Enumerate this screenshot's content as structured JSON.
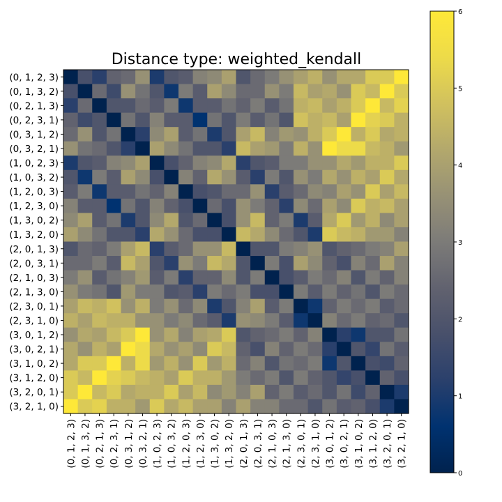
{
  "chart_data": {
    "type": "heatmap",
    "title": "Distance type: weighted_kendall",
    "colormap": "cividis",
    "vmin": 0,
    "vmax": 6,
    "colorbar_ticks": [
      "0",
      "1",
      "2",
      "3",
      "4",
      "5",
      "6"
    ],
    "labels": [
      "(0, 1, 2, 3)",
      "(0, 1, 3, 2)",
      "(0, 2, 1, 3)",
      "(0, 2, 3, 1)",
      "(0, 3, 1, 2)",
      "(0, 3, 2, 1)",
      "(1, 0, 2, 3)",
      "(1, 0, 3, 2)",
      "(1, 2, 0, 3)",
      "(1, 2, 3, 0)",
      "(1, 3, 0, 2)",
      "(1, 3, 2, 0)",
      "(2, 0, 1, 3)",
      "(2, 0, 3, 1)",
      "(2, 1, 0, 3)",
      "(2, 1, 3, 0)",
      "(2, 3, 0, 1)",
      "(2, 3, 1, 0)",
      "(3, 0, 1, 2)",
      "(3, 0, 2, 1)",
      "(3, 1, 0, 2)",
      "(3, 1, 2, 0)",
      "(3, 2, 0, 1)",
      "(3, 2, 1, 0)"
    ],
    "values": [
      [
        0.0,
        1.8,
        1.2,
        2.4,
        2.6,
        3.6,
        1.0,
        2.0,
        2.2,
        3.2,
        3.4,
        4.0,
        2.0,
        2.6,
        3.0,
        3.6,
        4.0,
        4.4,
        3.6,
        4.2,
        4.2,
        5.0,
        5.0,
        6.0
      ],
      [
        1.8,
        0.0,
        2.6,
        1.6,
        3.6,
        2.8,
        2.0,
        0.8,
        3.0,
        2.2,
        4.0,
        3.4,
        2.6,
        2.6,
        3.6,
        3.0,
        4.6,
        4.0,
        4.2,
        3.6,
        5.0,
        4.6,
        6.0,
        5.0
      ],
      [
        1.2,
        2.6,
        0.0,
        2.0,
        2.0,
        2.6,
        2.2,
        3.0,
        0.8,
        2.2,
        2.2,
        2.8,
        2.4,
        3.0,
        2.2,
        2.8,
        4.4,
        4.6,
        4.0,
        4.4,
        5.0,
        6.0,
        4.6,
        5.2
      ],
      [
        2.4,
        1.6,
        2.0,
        0.0,
        2.8,
        2.0,
        3.2,
        2.2,
        2.2,
        0.6,
        2.8,
        2.0,
        3.0,
        2.2,
        2.8,
        2.0,
        4.8,
        4.4,
        4.6,
        4.0,
        6.0,
        5.2,
        5.0,
        4.4
      ],
      [
        2.6,
        3.6,
        2.0,
        2.8,
        0.0,
        1.2,
        3.4,
        4.0,
        2.2,
        2.8,
        1.0,
        2.0,
        4.0,
        4.6,
        3.2,
        3.8,
        3.6,
        4.4,
        5.0,
        6.0,
        4.4,
        5.0,
        4.2,
        4.4
      ],
      [
        3.6,
        2.8,
        2.6,
        2.0,
        1.2,
        0.0,
        4.0,
        3.4,
        2.8,
        2.0,
        2.0,
        1.2,
        4.6,
        4.0,
        3.8,
        3.0,
        4.4,
        3.6,
        6.0,
        5.4,
        5.4,
        4.6,
        4.4,
        3.8
      ],
      [
        1.0,
        2.0,
        2.2,
        3.2,
        3.4,
        4.0,
        0.0,
        1.8,
        2.4,
        3.2,
        3.4,
        4.2,
        1.2,
        2.0,
        2.2,
        3.0,
        3.0,
        3.6,
        3.6,
        4.2,
        3.8,
        4.4,
        4.4,
        5.0
      ],
      [
        2.0,
        0.8,
        3.0,
        2.2,
        4.0,
        3.4,
        1.8,
        0.0,
        3.2,
        2.4,
        4.2,
        3.6,
        2.2,
        1.2,
        3.0,
        2.0,
        3.6,
        3.0,
        4.2,
        3.6,
        4.4,
        4.0,
        5.0,
        4.2
      ],
      [
        2.2,
        3.0,
        0.8,
        2.2,
        2.2,
        2.8,
        2.4,
        3.2,
        0.0,
        1.8,
        2.0,
        2.6,
        2.6,
        3.6,
        1.2,
        2.2,
        2.6,
        3.4,
        3.2,
        4.0,
        3.6,
        5.0,
        4.0,
        4.6
      ],
      [
        3.2,
        2.2,
        2.2,
        0.6,
        2.8,
        2.0,
        3.2,
        2.4,
        1.8,
        0.0,
        2.6,
        1.8,
        3.6,
        3.0,
        2.4,
        1.2,
        3.4,
        2.6,
        4.0,
        3.4,
        5.0,
        4.4,
        4.6,
        4.0
      ],
      [
        3.4,
        4.0,
        2.2,
        2.8,
        1.0,
        2.0,
        3.4,
        4.2,
        2.0,
        2.6,
        0.0,
        1.8,
        3.6,
        4.6,
        2.4,
        3.0,
        1.0,
        2.2,
        4.2,
        5.0,
        3.8,
        4.4,
        3.4,
        4.0
      ],
      [
        4.0,
        3.4,
        2.8,
        2.0,
        2.0,
        1.2,
        4.2,
        3.6,
        2.6,
        1.8,
        1.8,
        0.0,
        4.6,
        4.2,
        3.4,
        2.6,
        2.0,
        1.0,
        5.0,
        4.6,
        4.4,
        3.8,
        3.8,
        3.2
      ],
      [
        2.0,
        2.6,
        2.4,
        3.0,
        4.0,
        4.6,
        1.2,
        2.2,
        2.6,
        3.6,
        3.6,
        4.6,
        0.0,
        2.0,
        2.0,
        3.0,
        3.2,
        3.6,
        2.0,
        2.4,
        2.6,
        3.0,
        3.2,
        4.0
      ],
      [
        2.6,
        2.6,
        3.0,
        2.2,
        4.6,
        4.0,
        2.0,
        1.2,
        3.6,
        3.0,
        4.6,
        4.2,
        2.0,
        0.0,
        3.0,
        1.8,
        4.0,
        3.4,
        2.4,
        1.8,
        3.2,
        2.6,
        4.0,
        3.2
      ],
      [
        3.0,
        3.6,
        2.2,
        2.8,
        3.2,
        3.8,
        2.2,
        3.0,
        1.2,
        2.4,
        2.4,
        3.4,
        2.0,
        3.0,
        0.0,
        1.8,
        2.2,
        3.0,
        2.6,
        3.2,
        2.0,
        3.0,
        2.4,
        3.2
      ],
      [
        3.6,
        3.0,
        2.8,
        2.0,
        3.8,
        3.0,
        3.0,
        2.0,
        2.2,
        1.2,
        3.0,
        2.6,
        3.0,
        1.8,
        1.8,
        0.0,
        3.0,
        2.2,
        3.0,
        2.4,
        2.8,
        2.0,
        3.0,
        2.6
      ],
      [
        4.0,
        4.6,
        4.4,
        4.8,
        3.6,
        4.4,
        3.0,
        3.6,
        2.6,
        3.4,
        1.0,
        2.0,
        3.2,
        4.0,
        2.2,
        3.0,
        0.0,
        0.8,
        2.4,
        3.0,
        2.6,
        3.0,
        2.2,
        2.6
      ],
      [
        4.4,
        4.0,
        4.6,
        4.4,
        4.4,
        3.6,
        3.6,
        3.0,
        3.4,
        2.6,
        2.2,
        1.0,
        3.6,
        3.4,
        3.0,
        2.2,
        0.8,
        0.0,
        3.2,
        2.6,
        3.0,
        2.4,
        2.6,
        2.0
      ],
      [
        3.6,
        4.2,
        4.0,
        4.6,
        5.0,
        6.0,
        3.6,
        4.2,
        3.2,
        4.0,
        4.2,
        5.0,
        2.0,
        2.4,
        2.6,
        3.0,
        2.4,
        3.2,
        0.0,
        1.2,
        0.8,
        2.0,
        2.0,
        2.8
      ],
      [
        4.2,
        3.6,
        4.4,
        4.0,
        6.0,
        5.4,
        4.2,
        3.6,
        4.0,
        3.4,
        5.0,
        4.6,
        2.4,
        1.8,
        3.2,
        2.4,
        3.0,
        2.6,
        1.2,
        0.0,
        2.0,
        1.4,
        2.8,
        2.2
      ],
      [
        4.2,
        5.0,
        5.0,
        6.0,
        4.4,
        5.4,
        3.8,
        4.4,
        3.6,
        5.0,
        3.8,
        4.4,
        2.6,
        3.2,
        2.0,
        2.8,
        2.6,
        3.0,
        0.8,
        2.0,
        0.0,
        1.8,
        1.6,
        2.4
      ],
      [
        5.0,
        4.6,
        6.0,
        5.2,
        5.0,
        4.6,
        4.4,
        4.0,
        5.0,
        4.4,
        4.4,
        3.8,
        3.0,
        2.6,
        3.0,
        2.0,
        3.0,
        2.4,
        2.0,
        1.4,
        1.8,
        0.0,
        2.4,
        1.8
      ],
      [
        5.0,
        6.0,
        4.6,
        5.0,
        4.2,
        4.4,
        4.4,
        5.0,
        4.0,
        4.6,
        3.4,
        3.8,
        3.2,
        4.0,
        2.4,
        3.0,
        2.2,
        2.6,
        2.0,
        2.8,
        1.6,
        2.4,
        0.0,
        1.0
      ],
      [
        6.0,
        5.0,
        5.2,
        4.4,
        4.4,
        3.8,
        5.0,
        4.2,
        4.6,
        4.0,
        4.0,
        3.2,
        4.0,
        3.2,
        3.2,
        2.6,
        2.6,
        2.0,
        2.8,
        2.2,
        2.4,
        1.8,
        1.0,
        0.0
      ]
    ]
  }
}
